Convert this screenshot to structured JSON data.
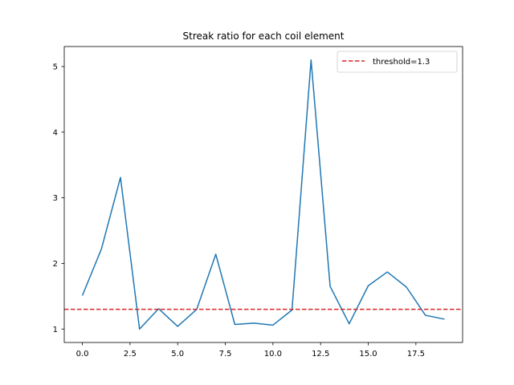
{
  "chart_data": {
    "type": "line",
    "title": "Streak ratio for each coil element",
    "xlabel": "",
    "ylabel": "",
    "xlim": [
      -0.95,
      19.95
    ],
    "ylim": [
      0.795,
      5.305
    ],
    "x_ticks": [
      0.0,
      2.5,
      5.0,
      7.5,
      10.0,
      12.5,
      15.0,
      17.5
    ],
    "x_tick_labels": [
      "0.0",
      "2.5",
      "5.0",
      "7.5",
      "10.0",
      "12.5",
      "15.0",
      "17.5"
    ],
    "y_ticks": [
      1,
      2,
      3,
      4,
      5
    ],
    "y_tick_labels": [
      "1",
      "2",
      "3",
      "4",
      "5"
    ],
    "grid": false,
    "legend_position": "top-right",
    "series": [
      {
        "color": "#1f77b4",
        "x": [
          0,
          1,
          2,
          3,
          4,
          5,
          6,
          7,
          8,
          9,
          10,
          11,
          12,
          13,
          14,
          15,
          16,
          17,
          18,
          19
        ],
        "y": [
          1.51,
          2.22,
          3.31,
          1.0,
          1.31,
          1.04,
          1.3,
          2.14,
          1.07,
          1.09,
          1.06,
          1.29,
          5.1,
          1.65,
          1.08,
          1.66,
          1.87,
          1.64,
          1.21,
          1.15
        ]
      }
    ],
    "reference_lines": [
      {
        "name": "threshold=1.3",
        "orientation": "horizontal",
        "y": 1.3,
        "color": "#d62728",
        "style": "dashed"
      }
    ]
  }
}
